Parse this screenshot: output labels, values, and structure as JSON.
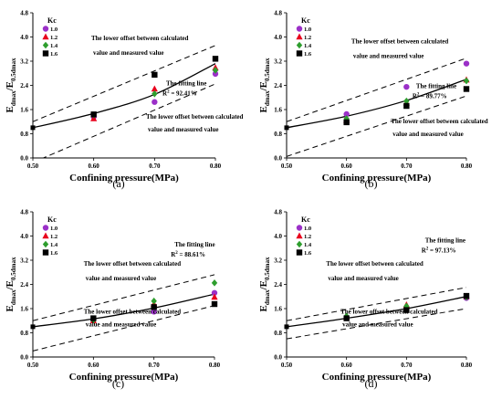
{
  "figure": {
    "panels": [
      "a",
      "b",
      "c",
      "d"
    ]
  },
  "chart_data": [
    {
      "panel_label": "(a)",
      "type": "scatter",
      "xlabel": "Confining pressure(MPa)",
      "ylabel_main": "E",
      "ylabel_sub1": "dmax",
      "ylabel_mid": "/E",
      "ylabel_sub2": "0.5dmax",
      "xlim": [
        0.5,
        0.8
      ],
      "ylim": [
        0.0,
        4.8
      ],
      "xticks": [
        "0.50",
        "0.60",
        "0.70",
        "0.80"
      ],
      "yticks": [
        "0.0",
        "0.8",
        "1.6",
        "2.4",
        "3.2",
        "4.0",
        "4.8"
      ],
      "legend_title": "Kc",
      "series": [
        {
          "name": "1.0",
          "marker": "circle",
          "color": "#9b30c8",
          "x": [
            0.6,
            0.7,
            0.8
          ],
          "y": [
            1.36,
            1.85,
            2.78
          ]
        },
        {
          "name": "1.2",
          "marker": "triangle",
          "color": "#e8001c",
          "x": [
            0.6,
            0.7,
            0.8
          ],
          "y": [
            1.3,
            2.28,
            2.98
          ]
        },
        {
          "name": "1.4",
          "marker": "diamond",
          "color": "#2e9e2e",
          "x": [
            0.6,
            0.7,
            0.8
          ],
          "y": [
            1.42,
            2.12,
            2.9
          ]
        },
        {
          "name": "1.6",
          "marker": "square",
          "color": "#000000",
          "x": [
            0.6,
            0.7,
            0.8
          ],
          "y": [
            1.44,
            2.75,
            3.28
          ]
        }
      ],
      "fit": {
        "x": [
          0.5,
          0.6,
          0.7,
          0.8
        ],
        "y": [
          1.0,
          1.47,
          2.1,
          3.12
        ]
      },
      "upper_offset": {
        "x": [
          0.5,
          0.8
        ],
        "y": [
          1.2,
          3.72
        ]
      },
      "lower_offset": {
        "x": [
          0.5,
          0.8
        ],
        "y": [
          -0.15,
          2.45
        ]
      },
      "fit_label": "The fitting line",
      "r2_label": "R",
      "r2_value": " = 92.41%",
      "upper_note_1": "The lower offset between calculated",
      "upper_note_2": "value and measured value",
      "lower_note_1": "The lower offset between calculated",
      "lower_note_2": "value and measured value"
    },
    {
      "panel_label": "(b)",
      "type": "scatter",
      "xlabel": "Confining pressure(MPa)",
      "ylabel_main": "E",
      "ylabel_sub1": "dmax",
      "ylabel_mid": "/E",
      "ylabel_sub2": "0.5dmax",
      "xlim": [
        0.5,
        0.8
      ],
      "ylim": [
        0.0,
        4.8
      ],
      "xticks": [
        "0.50",
        "0.60",
        "0.70",
        "0.80"
      ],
      "yticks": [
        "0.0",
        "0.8",
        "1.6",
        "2.4",
        "3.2",
        "4.0",
        "4.8"
      ],
      "legend_title": "Kc",
      "series": [
        {
          "name": "1.0",
          "marker": "circle",
          "color": "#9b30c8",
          "x": [
            0.6,
            0.7,
            0.8
          ],
          "y": [
            1.45,
            2.35,
            3.12
          ]
        },
        {
          "name": "1.2",
          "marker": "triangle",
          "color": "#e8001c",
          "x": [
            0.6,
            0.7,
            0.8
          ],
          "y": [
            1.25,
            1.82,
            2.58
          ]
        },
        {
          "name": "1.4",
          "marker": "diamond",
          "color": "#2e9e2e",
          "x": [
            0.6,
            0.7,
            0.8
          ],
          "y": [
            1.3,
            1.88,
            2.55
          ]
        },
        {
          "name": "1.6",
          "marker": "square",
          "color": "#000000",
          "x": [
            0.6,
            0.7,
            0.8
          ],
          "y": [
            1.18,
            1.72,
            2.28
          ]
        }
      ],
      "fit": {
        "x": [
          0.5,
          0.6,
          0.7,
          0.8
        ],
        "y": [
          1.0,
          1.38,
          1.9,
          2.6
        ]
      },
      "upper_offset": {
        "x": [
          0.5,
          0.8
        ],
        "y": [
          1.2,
          3.3
        ]
      },
      "lower_offset": {
        "x": [
          0.5,
          0.8
        ],
        "y": [
          0.05,
          2.05
        ]
      },
      "fit_label": "The fitting line",
      "r2_label": "R",
      "r2_value": " = 89.77%",
      "upper_note_1": "The lower offset between calculated",
      "upper_note_2": "value and measured value",
      "lower_note_1": "The lower offset between calculated",
      "lower_note_2": "value and measured value"
    },
    {
      "panel_label": "(c)",
      "type": "scatter",
      "xlabel": "Confining pressure(MPa)",
      "ylabel_main": "E",
      "ylabel_sub1": "dmax",
      "ylabel_mid": "/E",
      "ylabel_sub2": "0.5dmax",
      "xlim": [
        0.5,
        0.8
      ],
      "ylim": [
        0.0,
        4.8
      ],
      "xticks": [
        "0.50",
        "0.60",
        "0.70",
        "0.80"
      ],
      "yticks": [
        "0.0",
        "0.8",
        "1.6",
        "2.4",
        "3.2",
        "4.0",
        "4.8"
      ],
      "legend_title": "Kc",
      "series": [
        {
          "name": "1.0",
          "marker": "circle",
          "color": "#9b30c8",
          "x": [
            0.6,
            0.7,
            0.8
          ],
          "y": [
            1.25,
            1.5,
            2.12
          ]
        },
        {
          "name": "1.2",
          "marker": "triangle",
          "color": "#e8001c",
          "x": [
            0.6,
            0.7,
            0.8
          ],
          "y": [
            1.2,
            1.75,
            1.98
          ]
        },
        {
          "name": "1.4",
          "marker": "diamond",
          "color": "#2e9e2e",
          "x": [
            0.6,
            0.7,
            0.8
          ],
          "y": [
            1.22,
            1.85,
            2.45
          ]
        },
        {
          "name": "1.6",
          "marker": "square",
          "color": "#000000",
          "x": [
            0.6,
            0.7,
            0.8
          ],
          "y": [
            1.28,
            1.65,
            1.75
          ]
        }
      ],
      "fit": {
        "x": [
          0.5,
          0.6,
          0.7,
          0.8
        ],
        "y": [
          1.0,
          1.26,
          1.62,
          2.08
        ]
      },
      "upper_offset": {
        "x": [
          0.5,
          0.8
        ],
        "y": [
          1.2,
          2.72
        ]
      },
      "lower_offset": {
        "x": [
          0.5,
          0.8
        ],
        "y": [
          0.2,
          1.7
        ]
      },
      "fit_label": "The fitting line",
      "r2_label": "R",
      "r2_value": " = 88.61%",
      "upper_note_1": "The lower offset between calculated",
      "upper_note_2": "value and measured value",
      "lower_note_1": "The lower offset between calculated",
      "lower_note_2": "value and measured value"
    },
    {
      "panel_label": "(d)",
      "type": "scatter",
      "xlabel": "Confining pressure(MPa)",
      "ylabel_main": "E",
      "ylabel_sub1": "dmax",
      "ylabel_mid": "/E",
      "ylabel_sub2": "0.5dmax",
      "xlim": [
        0.5,
        0.8
      ],
      "ylim": [
        0.0,
        4.8
      ],
      "xticks": [
        "0.50",
        "0.60",
        "0.70",
        "0.80"
      ],
      "yticks": [
        "0.0",
        "0.8",
        "1.6",
        "2.4",
        "3.2",
        "4.0",
        "4.8"
      ],
      "legend_title": "Kc",
      "series": [
        {
          "name": "1.0",
          "marker": "circle",
          "color": "#9b30c8",
          "x": [
            0.6,
            0.7,
            0.8
          ],
          "y": [
            1.3,
            1.62,
            1.95
          ]
        },
        {
          "name": "1.2",
          "marker": "triangle",
          "color": "#e8001c",
          "x": [
            0.6,
            0.7,
            0.8
          ],
          "y": [
            1.32,
            1.72,
            2.0
          ]
        },
        {
          "name": "1.4",
          "marker": "diamond",
          "color": "#2e9e2e",
          "x": [
            0.6,
            0.7,
            0.8
          ],
          "y": [
            1.35,
            1.68,
            1.98
          ]
        },
        {
          "name": "1.6",
          "marker": "square",
          "color": "#000000",
          "x": [
            0.6,
            0.7,
            0.8
          ],
          "y": [
            1.28,
            1.55,
            2.02
          ]
        }
      ],
      "fit": {
        "x": [
          0.5,
          0.6,
          0.7,
          0.8
        ],
        "y": [
          1.0,
          1.28,
          1.6,
          2.0
        ]
      },
      "upper_offset": {
        "x": [
          0.5,
          0.8
        ],
        "y": [
          1.2,
          2.3
        ]
      },
      "lower_offset": {
        "x": [
          0.5,
          0.8
        ],
        "y": [
          0.6,
          1.6
        ]
      },
      "fit_label": "The fitting line",
      "r2_label": "R",
      "r2_value": " = 97.13%",
      "upper_note_1": "The lower offset between calculated",
      "upper_note_2": "value and measured value",
      "lower_note_1": "The lower offset between calculated",
      "lower_note_2": "value and measured value"
    }
  ]
}
